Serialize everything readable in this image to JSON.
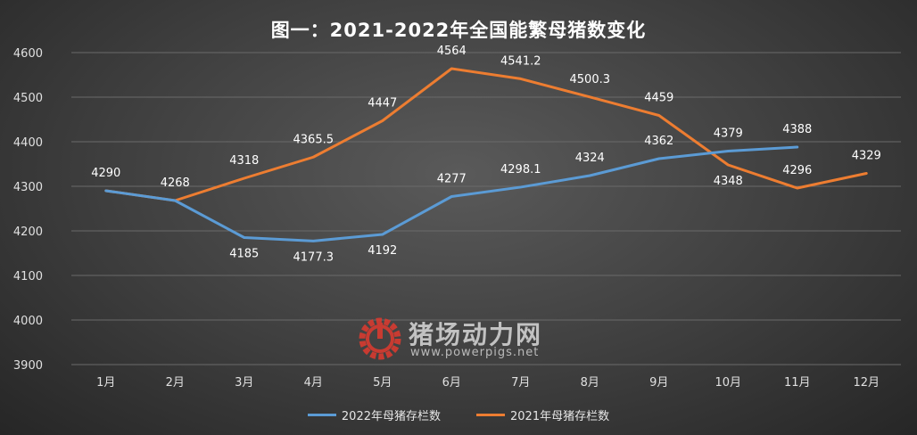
{
  "chart_data": {
    "type": "line",
    "title": "图一：2021-2022年全国能繁母猪数变化",
    "categories": [
      "1月",
      "2月",
      "3月",
      "4月",
      "5月",
      "6月",
      "7月",
      "8月",
      "9月",
      "10月",
      "11月",
      "12月"
    ],
    "ylim": [
      3900,
      4600
    ],
    "yticks": [
      "3900",
      "4000",
      "4100",
      "4200",
      "4300",
      "4400",
      "4500",
      "4600"
    ],
    "grid": true,
    "legend_position": "bottom",
    "series": [
      {
        "name": "2022年母猪存栏数",
        "color": "#5b9bd5",
        "values": [
          4290,
          4268,
          4185,
          4177.3,
          4192,
          4277,
          4298.1,
          4324,
          4362,
          4379,
          4388,
          null
        ],
        "labels": [
          "4290",
          "4268",
          "4185",
          "4177.3",
          "4192",
          "4277",
          "4298.1",
          "4324",
          "4362",
          "4379",
          "4388",
          ""
        ]
      },
      {
        "name": "2021年母猪存栏数",
        "color": "#ed7d31",
        "values": [
          4290,
          4268,
          4318,
          4365.5,
          4447,
          4564,
          4541.2,
          4500.3,
          4459,
          4348,
          4296,
          4329
        ],
        "labels": [
          "",
          "",
          "4318",
          "4365.5",
          "4447",
          "4564",
          "4541.2",
          "4500.3",
          "4459",
          "4348",
          "4296",
          "4329"
        ]
      }
    ]
  },
  "watermark": {
    "name": "猪场动力网",
    "url": "www.powerpigs.net",
    "logo_color": "#e03a2f"
  }
}
